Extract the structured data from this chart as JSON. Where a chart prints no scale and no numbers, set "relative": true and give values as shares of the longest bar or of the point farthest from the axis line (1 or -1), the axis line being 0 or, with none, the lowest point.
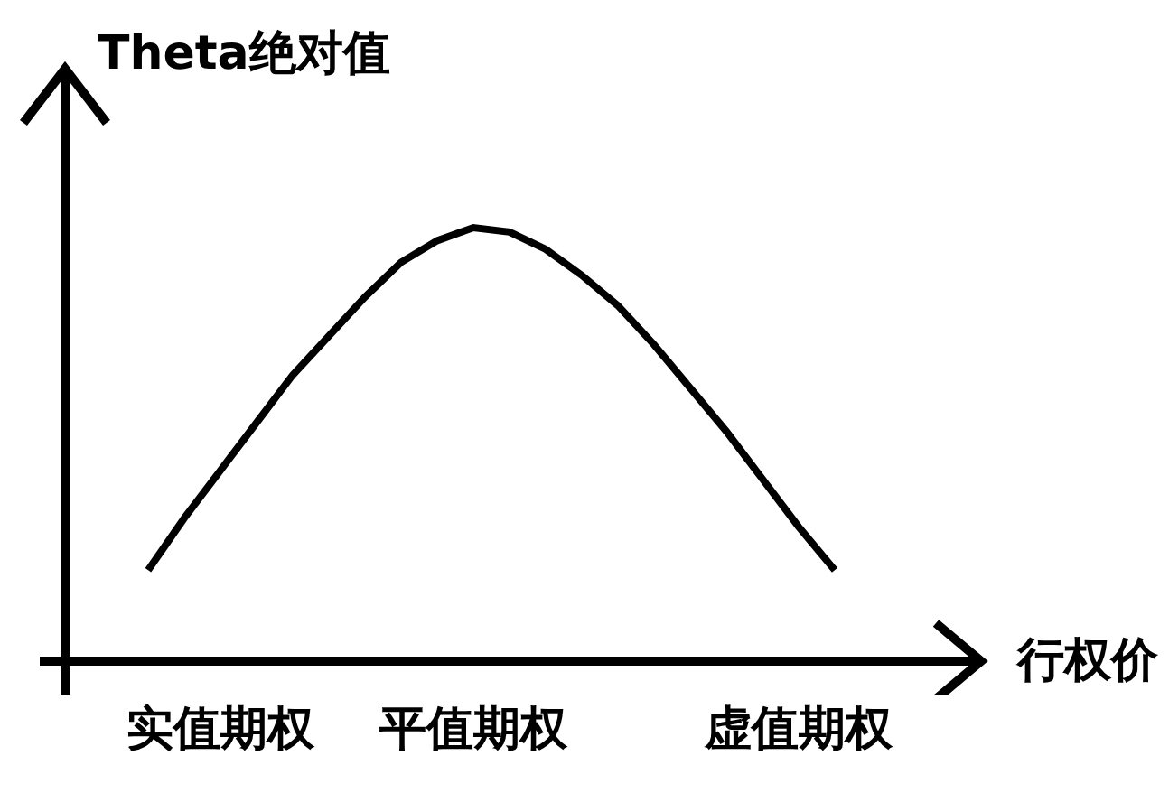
{
  "chart_data": {
    "type": "line",
    "relative": true,
    "ylabel": "Theta绝对值",
    "xlabel": "行权价",
    "tick_labels": "x",
    "categories": [
      null,
      null,
      "实值期权",
      null,
      null,
      null,
      null,
      null,
      null,
      "平值期权",
      null,
      null,
      null,
      null,
      null,
      null,
      null,
      null,
      "虚值期权",
      null
    ],
    "series": [
      {
        "color": "#000000",
        "values": [
          0.21,
          0.33,
          0.44,
          0.55,
          0.66,
          0.75,
          0.84,
          0.92,
          0.97,
          1.0,
          0.99,
          0.95,
          0.89,
          0.82,
          0.73,
          0.63,
          0.53,
          0.42,
          0.31,
          0.21
        ]
      }
    ]
  }
}
